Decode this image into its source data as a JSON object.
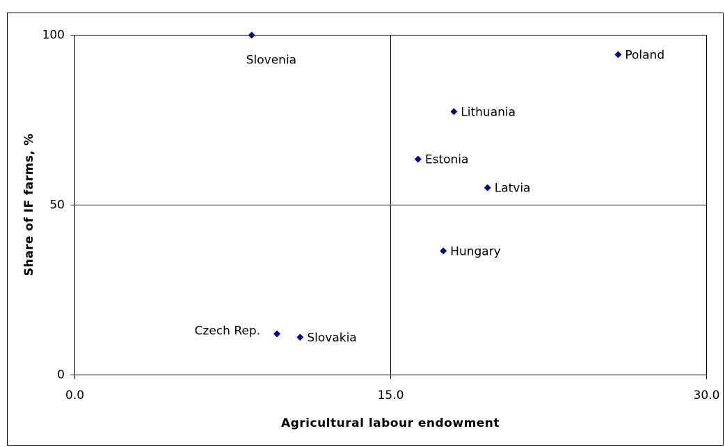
{
  "chart_data": {
    "type": "scatter",
    "xlabel": "Agricultural labour endowment",
    "ylabel": "Share of IF farms, %",
    "series": [
      {
        "color": "#000080",
        "x": [
          8.4,
          25.8,
          18.0,
          16.3,
          19.6,
          17.5,
          9.6,
          10.7
        ],
        "values": [
          100,
          94.3,
          77.5,
          63.5,
          55.1,
          36.5,
          12.1,
          11.1
        ],
        "point_labels": [
          "Slovenia",
          "Poland",
          "Lithuania",
          "Estonia",
          "Latvia",
          "Hungary",
          "Czech Rep.",
          "Slovakia"
        ]
      }
    ],
    "xlim": [
      0,
      30
    ],
    "xticks": [
      {
        "value": 0,
        "label": "0.0"
      },
      {
        "value": 15,
        "label": "15.0"
      },
      {
        "value": 30,
        "label": "30.0"
      }
    ],
    "ylim": [
      0,
      100
    ],
    "yticks": [
      0,
      50,
      100
    ],
    "grid": true
  }
}
